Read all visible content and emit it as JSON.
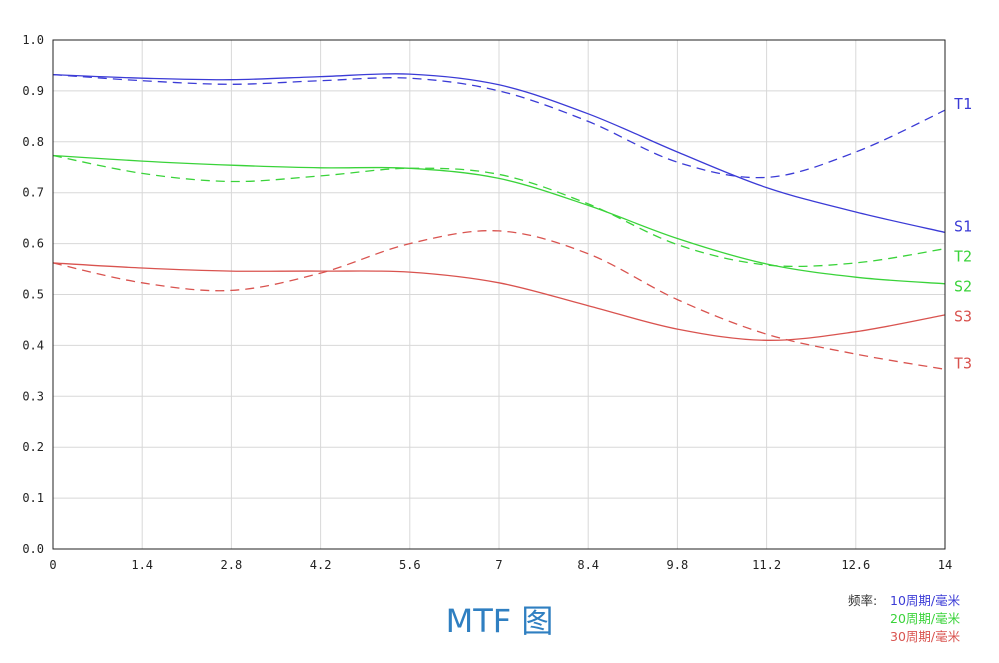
{
  "chart_data": {
    "type": "line",
    "title": "MTF 图",
    "xlabel": "",
    "ylabel": "",
    "xlim": [
      0,
      14
    ],
    "ylim": [
      0,
      1
    ],
    "grid": true,
    "x_ticks": [
      "0",
      "1.4",
      "2.8",
      "4.2",
      "5.6",
      "7",
      "8.4",
      "9.8",
      "11.2",
      "12.6",
      "14"
    ],
    "y_ticks": [
      "0.0",
      "0.1",
      "0.2",
      "0.3",
      "0.4",
      "0.5",
      "0.6",
      "0.7",
      "0.8",
      "0.9",
      "1.0"
    ],
    "x": [
      0,
      1.4,
      2.8,
      4.2,
      5.6,
      7,
      8.4,
      9.8,
      11.2,
      12.6,
      14
    ],
    "series": [
      {
        "name": "S1",
        "group": 0,
        "dash": false,
        "color": "#3b3bd6",
        "values": [
          0.932,
          0.925,
          0.922,
          0.928,
          0.933,
          0.912,
          0.855,
          0.78,
          0.71,
          0.662,
          0.622
        ]
      },
      {
        "name": "T1",
        "group": 0,
        "dash": true,
        "color": "#3b3bd6",
        "values": [
          0.932,
          0.92,
          0.913,
          0.92,
          0.925,
          0.9,
          0.84,
          0.76,
          0.73,
          0.78,
          0.862
        ]
      },
      {
        "name": "S2",
        "group": 1,
        "dash": false,
        "color": "#3ad33a",
        "values": [
          0.773,
          0.762,
          0.754,
          0.749,
          0.748,
          0.728,
          0.675,
          0.61,
          0.56,
          0.534,
          0.521
        ]
      },
      {
        "name": "T2",
        "group": 1,
        "dash": true,
        "color": "#3ad33a",
        "values": [
          0.773,
          0.738,
          0.722,
          0.733,
          0.748,
          0.736,
          0.678,
          0.598,
          0.558,
          0.562,
          0.59
        ]
      },
      {
        "name": "S3",
        "group": 2,
        "dash": false,
        "color": "#d9534f",
        "values": [
          0.562,
          0.552,
          0.546,
          0.546,
          0.544,
          0.523,
          0.478,
          0.432,
          0.41,
          0.427,
          0.46
        ]
      },
      {
        "name": "T3",
        "group": 2,
        "dash": true,
        "color": "#d9534f",
        "values": [
          0.562,
          0.523,
          0.508,
          0.542,
          0.6,
          0.625,
          0.58,
          0.49,
          0.422,
          0.383,
          0.353
        ]
      }
    ],
    "legend": {
      "position": "bottom-right",
      "key": "频率:",
      "items": [
        {
          "label": "10周期/毫米",
          "color": "#3b3bd6"
        },
        {
          "label": "20周期/毫米",
          "color": "#3ad33a"
        },
        {
          "label": "30周期/毫米",
          "color": "#d9534f"
        }
      ]
    }
  }
}
